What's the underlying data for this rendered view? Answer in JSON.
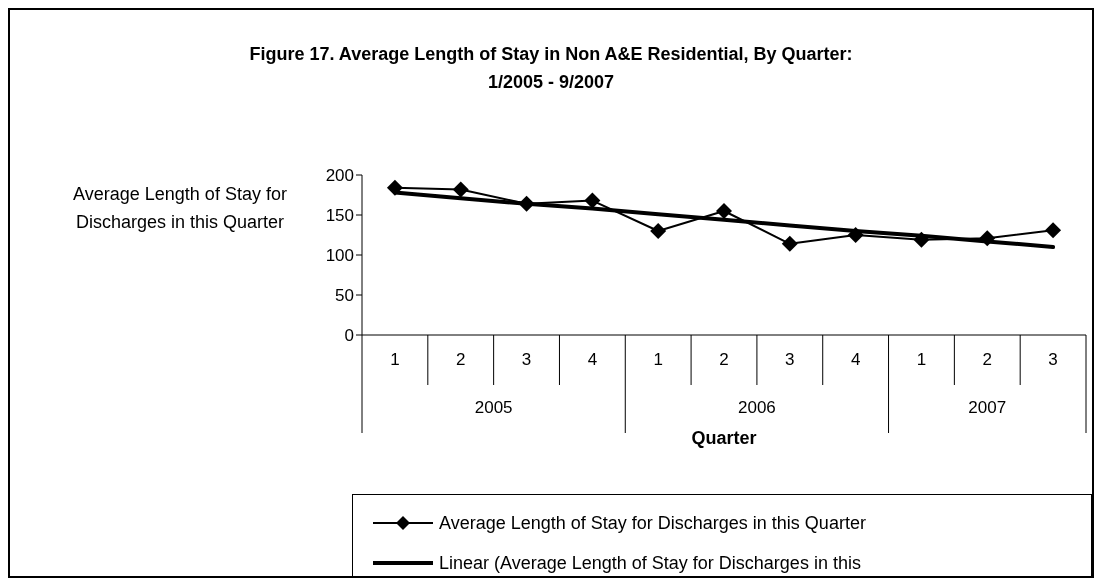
{
  "chart_data": {
    "type": "line",
    "title": "Figure 17. Average Length of Stay in Non A&E Residential, By Quarter:\n1/2005 - 9/2007",
    "xlabel": "Quarter",
    "ylabel": "Average Length of Stay for Discharges in this Quarter",
    "categories": [
      "1",
      "2",
      "3",
      "4",
      "1",
      "2",
      "3",
      "4",
      "1",
      "2",
      "3"
    ],
    "annotations": [
      "2005",
      "2006",
      "2007"
    ],
    "series": [
      {
        "name": "Average Length of Stay for Discharges in this Quarter",
        "color": "#000000",
        "marker": "diamond",
        "values": [
          184,
          182,
          164,
          168,
          130,
          155,
          114,
          125,
          119,
          121,
          131
        ]
      },
      {
        "name": "Linear (Average Length of Stay for Discharges in this",
        "color": "#000000",
        "marker": "none",
        "values": [
          178,
          171,
          164,
          158,
          151,
          144,
          137,
          130,
          124,
          117,
          110
        ]
      }
    ],
    "ylim": [
      0,
      200
    ],
    "yticks": [
      0,
      50,
      100,
      150,
      200
    ],
    "grid": false,
    "legend": "bottom"
  }
}
